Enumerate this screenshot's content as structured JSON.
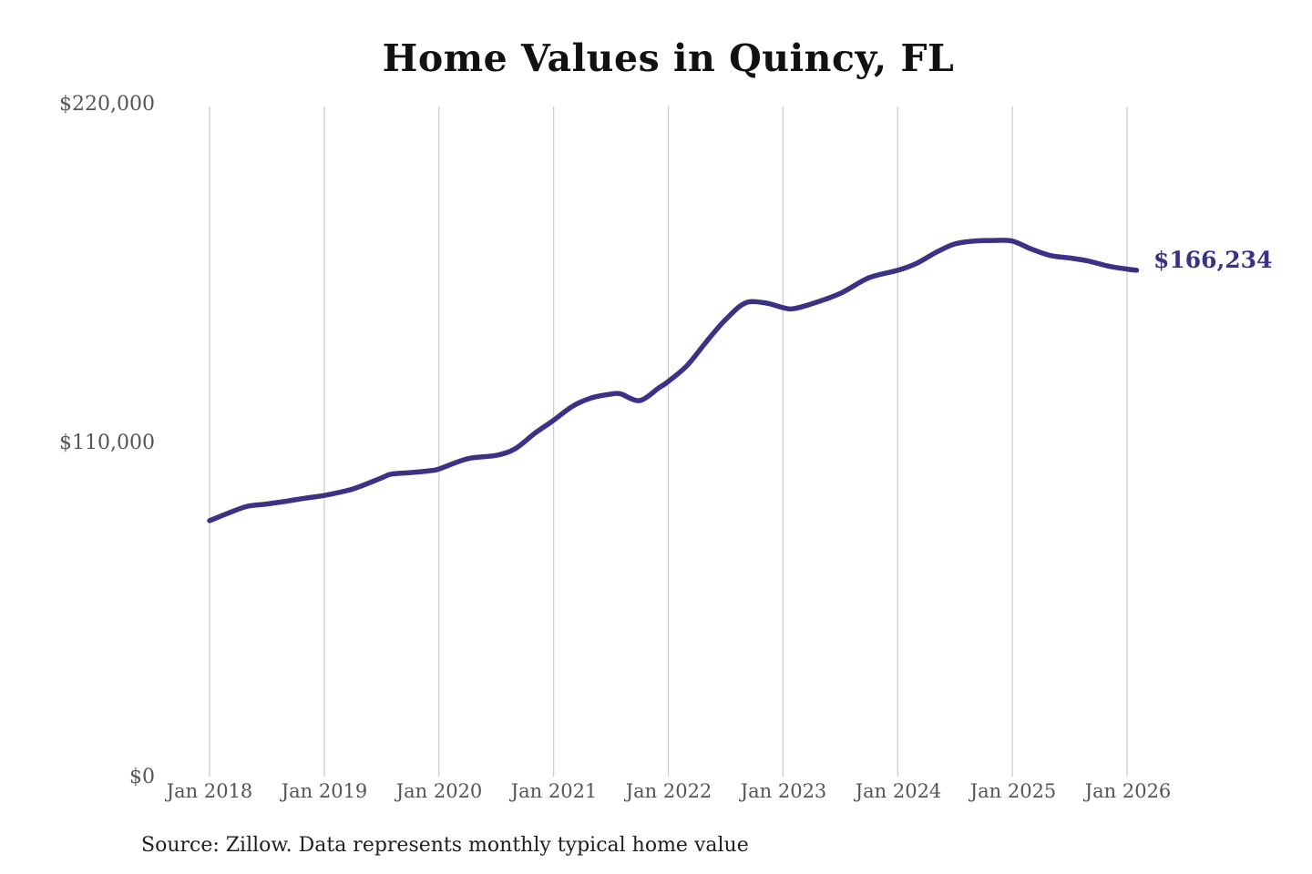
{
  "title": "Home Values in Quincy, FL",
  "source_note": "Source: Zillow. Data represents monthly typical home value",
  "end_label": "$166,234",
  "colors": {
    "line": "#3a3285",
    "end_label": "#3a3285",
    "gridline": "#cccccc",
    "tick_text": "#555555",
    "title_text": "#111111",
    "source_text": "#1f1f1f",
    "background": "#ffffff"
  },
  "chart_data": {
    "type": "line",
    "title": "Home Values in Quincy, FL",
    "xlabel": "",
    "ylabel": "",
    "ylim": [
      0,
      220000
    ],
    "y_tick_values": [
      0,
      110000,
      220000
    ],
    "y_tick_labels": [
      "$0",
      "$110,000",
      "$220,000"
    ],
    "x_ticks": [
      "Jan 2018",
      "Jan 2019",
      "Jan 2020",
      "Jan 2021",
      "Jan 2022",
      "Jan 2023",
      "Jan 2024",
      "Jan 2025",
      "Jan 2026"
    ],
    "grid": "vertical-only",
    "legend": "none",
    "end_value": 166234,
    "series": [
      {
        "name": "Typical home value",
        "points": [
          [
            "2018-01",
            84900
          ],
          [
            "2018-03",
            87400
          ],
          [
            "2018-05",
            89600
          ],
          [
            "2018-07",
            90300
          ],
          [
            "2018-09",
            91200
          ],
          [
            "2018-11",
            92200
          ],
          [
            "2019-01",
            93100
          ],
          [
            "2019-04",
            95200
          ],
          [
            "2019-07",
            98800
          ],
          [
            "2019-08",
            100000
          ],
          [
            "2019-10",
            100500
          ],
          [
            "2019-12",
            101100
          ],
          [
            "2020-01",
            101700
          ],
          [
            "2020-04",
            105000
          ],
          [
            "2020-07",
            106100
          ],
          [
            "2020-09",
            108300
          ],
          [
            "2020-11",
            113200
          ],
          [
            "2021-01",
            117500
          ],
          [
            "2021-03",
            122100
          ],
          [
            "2021-05",
            124800
          ],
          [
            "2021-07",
            126000
          ],
          [
            "2021-08",
            126100
          ],
          [
            "2021-10",
            123900
          ],
          [
            "2021-12",
            128000
          ],
          [
            "2022-01",
            130100
          ],
          [
            "2022-03",
            135400
          ],
          [
            "2022-05",
            143100
          ],
          [
            "2022-07",
            150200
          ],
          [
            "2022-09",
            155500
          ],
          [
            "2022-11",
            155700
          ],
          [
            "2023-01",
            154100
          ],
          [
            "2023-02",
            153700
          ],
          [
            "2023-04",
            155300
          ],
          [
            "2023-07",
            158700
          ],
          [
            "2023-10",
            163800
          ],
          [
            "2024-01",
            166200
          ],
          [
            "2024-03",
            168500
          ],
          [
            "2024-05",
            172000
          ],
          [
            "2024-07",
            174800
          ],
          [
            "2024-09",
            175700
          ],
          [
            "2024-11",
            175900
          ],
          [
            "2025-01",
            175700
          ],
          [
            "2025-03",
            173100
          ],
          [
            "2025-05",
            171000
          ],
          [
            "2025-07",
            170200
          ],
          [
            "2025-09",
            169200
          ],
          [
            "2025-11",
            167600
          ],
          [
            "2026-01",
            166600
          ],
          [
            "2026-02",
            166234
          ]
        ]
      }
    ]
  }
}
